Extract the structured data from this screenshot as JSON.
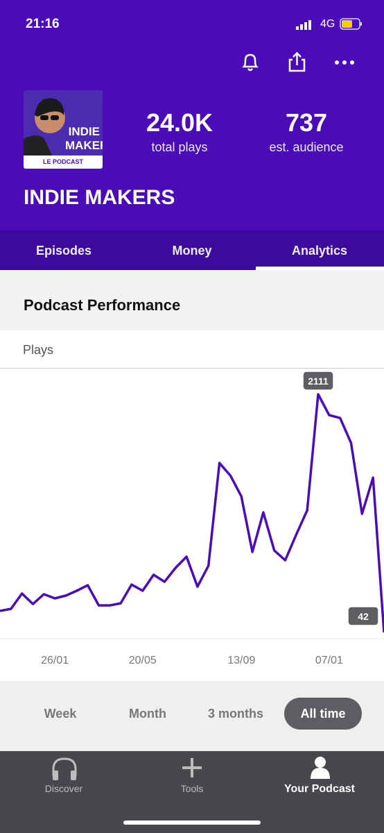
{
  "status_bar": {
    "time": "21:16",
    "network": "4G"
  },
  "podcast": {
    "cover_line1": "INDIE",
    "cover_line2": "MAKERS",
    "cover_sub": "LE PODCAST",
    "plays": "24.0K",
    "plays_label": "total plays",
    "audience": "737",
    "audience_label": "est. audience",
    "name": "INDIE MAKERS"
  },
  "tabs": [
    "Episodes",
    "Money",
    "Analytics"
  ],
  "section_title": "Podcast Performance",
  "chart_data": {
    "type": "line",
    "y_label": "Plays",
    "color": "#4a0cb8",
    "categories": [
      null,
      null,
      null,
      null,
      null,
      "26/01",
      null,
      null,
      null,
      null,
      null,
      null,
      null,
      "20/05",
      null,
      null,
      null,
      null,
      null,
      null,
      null,
      null,
      "13/09",
      null,
      null,
      null,
      null,
      null,
      null,
      null,
      "07/01",
      null,
      null,
      null,
      null,
      null
    ],
    "values": [
      229,
      247,
      380,
      289,
      374,
      338,
      362,
      404,
      452,
      277,
      277,
      295,
      458,
      404,
      543,
      482,
      603,
      700,
      440,
      621,
      1514,
      1405,
      1224,
      742,
      1085,
      754,
      669,
      892,
      1103,
      2111,
      1930,
      1905,
      1688,
      1073,
      1387,
      42
    ],
    "ylim": [
      0,
      2250
    ]
  },
  "ranges": [
    "Week",
    "Month",
    "3 months",
    "All time"
  ],
  "nav": [
    "Discover",
    "Tools",
    "Your Podcast"
  ]
}
